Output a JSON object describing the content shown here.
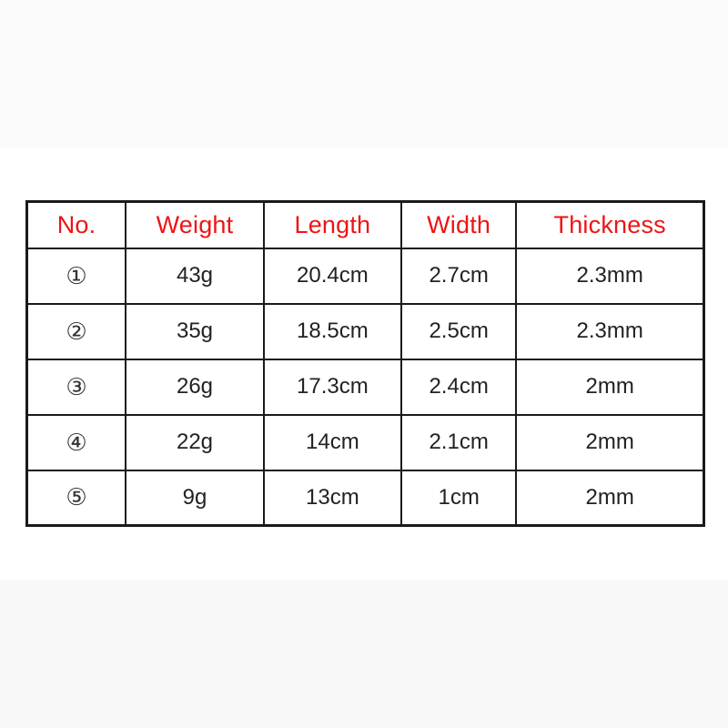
{
  "page": {
    "background": "#ffffff",
    "top_band_color": "#fbfbfb",
    "bottom_band_color": "#f8f8f8"
  },
  "chart_data": {
    "type": "table",
    "title": "",
    "columns": [
      "No.",
      "Weight",
      "Length",
      "Width",
      "Thickness"
    ],
    "rows": [
      [
        "①",
        "43g",
        "20.4cm",
        "2.7cm",
        "2.3mm"
      ],
      [
        "②",
        "35g",
        "18.5cm",
        "2.5cm",
        "2.3mm"
      ],
      [
        "③",
        "26g",
        "17.3cm",
        "2.4cm",
        "2mm"
      ],
      [
        "④",
        "22g",
        "14cm",
        "2.1cm",
        "2mm"
      ],
      [
        "⑤",
        "9g",
        "13cm",
        "1cm",
        "2mm"
      ]
    ],
    "colors": {
      "header_text": "#ee1414",
      "body_text": "#222222",
      "grid_border": "#1a1a1a"
    },
    "layout_hints": {
      "header_row": true,
      "grid": "full",
      "cell_alignment": "center"
    }
  }
}
